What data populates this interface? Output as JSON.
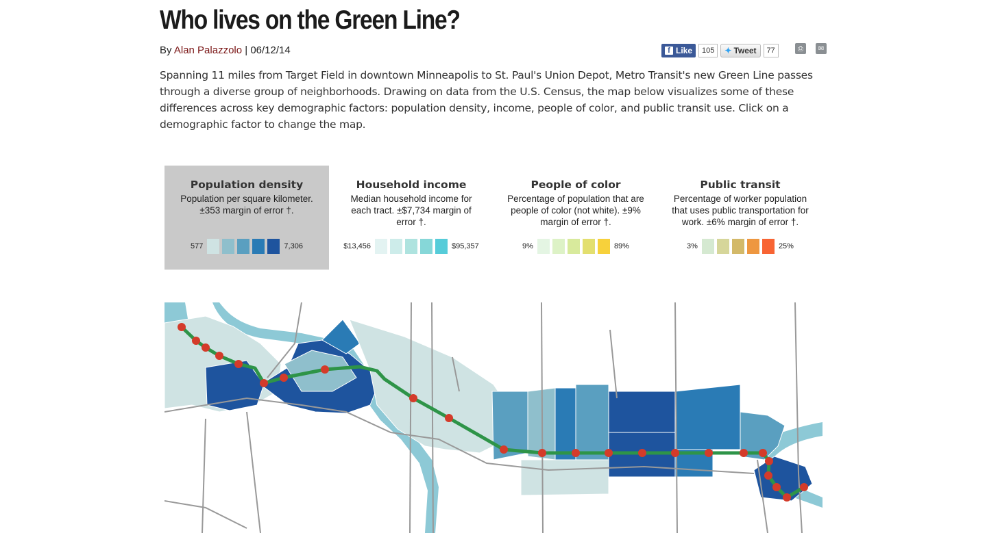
{
  "article": {
    "title": "Who lives on the Green Line?",
    "byline_prefix": "By",
    "author": "Alan Palazzolo",
    "date_sep": " | ",
    "date": "06/12/14",
    "intro": "Spanning 11 miles from Target Field in downtown Minneapolis to St. Paul's Union Depot, Metro Transit's new Green Line passes through a diverse group of neighborhoods. Drawing on data from the U.S. Census, the map below visualizes some of these differences across key demographic factors: population density, income, people of color, and public transit use. Click on a demographic factor to change the map."
  },
  "social": {
    "like_label": "Like",
    "like_count": "105",
    "tweet_label": "Tweet",
    "tweet_count": "77"
  },
  "factors": [
    {
      "title": "Population density",
      "desc": "Population per square kilometer. ±353 margin of error †.",
      "low": "577",
      "high": "7,306",
      "colors": [
        "#cfe3e3",
        "#8fbfcc",
        "#5a9fc0",
        "#2a7bb5",
        "#1e549e"
      ],
      "active": true
    },
    {
      "title": "Household income",
      "desc": "Median household income for each tract. ±$7,734 margin of error †.",
      "low": "$13,456",
      "high": "$95,357",
      "colors": [
        "#e3f3f2",
        "#cdecea",
        "#aee3df",
        "#86d7d8",
        "#56ccd9"
      ],
      "active": false
    },
    {
      "title": "People of color",
      "desc": "Percentage of population that are people of color (not white). ±9% margin of error †.",
      "low": "9%",
      "high": "89%",
      "colors": [
        "#e4f5e3",
        "#ddf2c6",
        "#d8ea9c",
        "#e3df6f",
        "#f7d13b"
      ],
      "active": false
    },
    {
      "title": "Public transit",
      "desc": "Percentage of worker population that uses public transportation for work. ±6% margin of error †.",
      "low": "3%",
      "high": "25%",
      "colors": [
        "#d5e9d1",
        "#d6d69a",
        "#d3b969",
        "#ee9740",
        "#f86433"
      ],
      "active": false
    }
  ],
  "map": {
    "line_color": "#2e9448",
    "station_color": "#d43b2a",
    "water_color": "#8dc9d6",
    "road_color": "#999999"
  }
}
